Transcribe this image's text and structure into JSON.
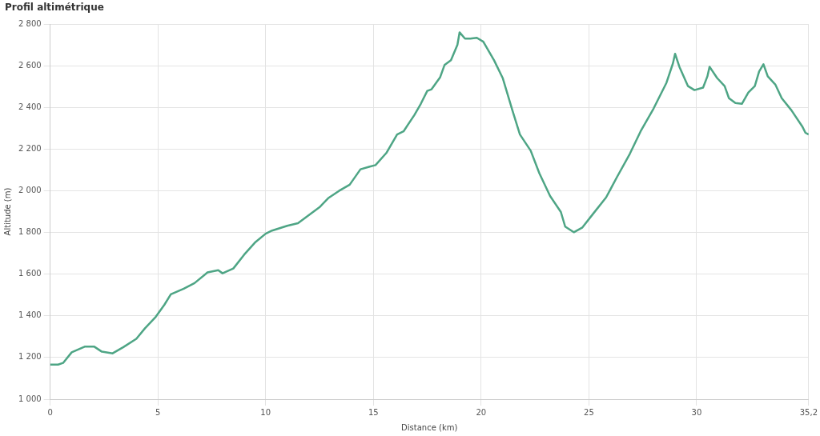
{
  "chart_data": {
    "type": "line",
    "title": "Profil altimétrique",
    "xlabel": "Distance (km)",
    "ylabel": "Altitude (m)",
    "xlim": [
      0,
      35.2
    ],
    "xticks": [
      0,
      5,
      10,
      15,
      20,
      25,
      30,
      {
        "value": 35.2,
        "label": "35,2"
      }
    ],
    "ylim": [
      1000,
      2800
    ],
    "yticks": [
      {
        "value": 1000,
        "label": "1 000"
      },
      {
        "value": 1200,
        "label": "1 200"
      },
      {
        "value": 1400,
        "label": "1 400"
      },
      {
        "value": 1600,
        "label": "1 600"
      },
      {
        "value": 1800,
        "label": "1 800"
      },
      {
        "value": 2000,
        "label": "2 000"
      },
      {
        "value": 2200,
        "label": "2 200"
      },
      {
        "value": 2400,
        "label": "2 400"
      },
      {
        "value": 2600,
        "label": "2 600"
      },
      {
        "value": 2800,
        "label": "2 800"
      }
    ],
    "grid": true,
    "legend": false,
    "marker": "none",
    "line_style": "solid",
    "series": [
      {
        "color": "#4ea585",
        "x": [
          0,
          0.37,
          0.6,
          1.0,
          1.6,
          2.05,
          2.4,
          2.9,
          3.4,
          4.0,
          4.4,
          4.9,
          5.3,
          5.6,
          6.2,
          6.7,
          7.3,
          7.8,
          8.0,
          8.5,
          9.0,
          9.5,
          10.0,
          10.3,
          11.0,
          11.5,
          12.0,
          12.5,
          12.9,
          13.4,
          13.9,
          14.4,
          14.8,
          15.1,
          15.6,
          16.1,
          16.4,
          16.9,
          17.2,
          17.5,
          17.7,
          18.1,
          18.3,
          18.6,
          18.9,
          19.0,
          19.25,
          19.5,
          19.8,
          20.1,
          20.6,
          21.0,
          21.45,
          21.8,
          22.3,
          22.7,
          23.2,
          23.7,
          23.9,
          24.3,
          24.7,
          25.2,
          25.8,
          26.3,
          26.9,
          27.4,
          28.0,
          28.6,
          28.9,
          29.0,
          29.2,
          29.6,
          29.9,
          30.3,
          30.5,
          30.6,
          30.95,
          31.3,
          31.5,
          31.8,
          32.1,
          32.4,
          32.7,
          32.9,
          33.1,
          33.3,
          33.65,
          33.95,
          34.4,
          34.9,
          35.05,
          35.2
        ],
        "values": [
          1166,
          1166,
          1174,
          1225,
          1252,
          1252,
          1228,
          1220,
          1250,
          1290,
          1340,
          1395,
          1453,
          1503,
          1530,
          1557,
          1608,
          1619,
          1604,
          1627,
          1693,
          1751,
          1794,
          1809,
          1832,
          1844,
          1883,
          1921,
          1964,
          1999,
          2029,
          2103,
          2115,
          2123,
          2181,
          2270,
          2285,
          2363,
          2417,
          2479,
          2487,
          2545,
          2603,
          2626,
          2700,
          2760,
          2730,
          2730,
          2734,
          2715,
          2626,
          2541,
          2386,
          2270,
          2192,
          2084,
          1975,
          1898,
          1828,
          1801,
          1824,
          1890,
          1968,
          2065,
          2177,
          2285,
          2394,
          2518,
          2611,
          2657,
          2595,
          2502,
          2483,
          2495,
          2549,
          2595,
          2541,
          2502,
          2444,
          2421,
          2417,
          2471,
          2502,
          2572,
          2607,
          2549,
          2510,
          2444,
          2386,
          2309,
          2278,
          2270
        ]
      }
    ]
  }
}
